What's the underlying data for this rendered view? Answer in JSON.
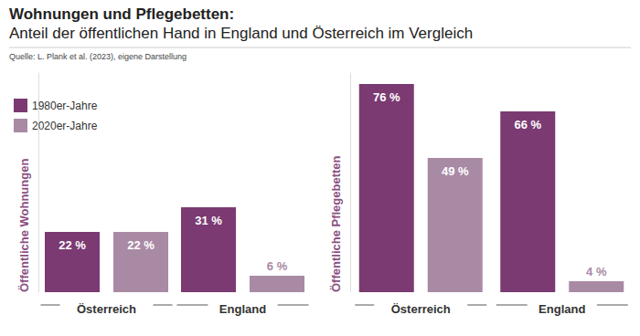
{
  "title": "Wohnungen und Pflegebetten:",
  "subtitle": "Anteil der öffentlichen Hand in England und Österreich im Vergleich",
  "source": "Quelle: L. Plank et al. (2023), eigene Darstellung",
  "chart_data": [
    {
      "type": "bar",
      "y_label": "Öffentliche Wohnungen",
      "categories": [
        "Österreich",
        "England"
      ],
      "series": [
        {
          "name": "1980er-Jahre",
          "color": "#7b3a72",
          "values": [
            22,
            31
          ],
          "value_labels": [
            "22 %",
            "31 %"
          ]
        },
        {
          "name": "2020er-Jahre",
          "color": "#a98aa5",
          "values": [
            22,
            6
          ],
          "value_labels": [
            "22 %",
            "6 %"
          ]
        }
      ],
      "ylim": [
        0,
        80
      ],
      "data_labels": true,
      "tick_labels": "x",
      "legend": "top-left"
    },
    {
      "type": "bar",
      "y_label": "Öffentliche Pflegebetten",
      "categories": [
        "Österreich",
        "England"
      ],
      "series": [
        {
          "name": "1980er-Jahre",
          "color": "#7b3a72",
          "values": [
            76,
            66
          ],
          "value_labels": [
            "76 %",
            "66 %"
          ]
        },
        {
          "name": "2020er-Jahre",
          "color": "#a98aa5",
          "values": [
            49,
            4
          ],
          "value_labels": [
            "49 %",
            "4 %"
          ]
        }
      ],
      "ylim": [
        0,
        80
      ],
      "data_labels": true,
      "tick_labels": "x"
    }
  ]
}
